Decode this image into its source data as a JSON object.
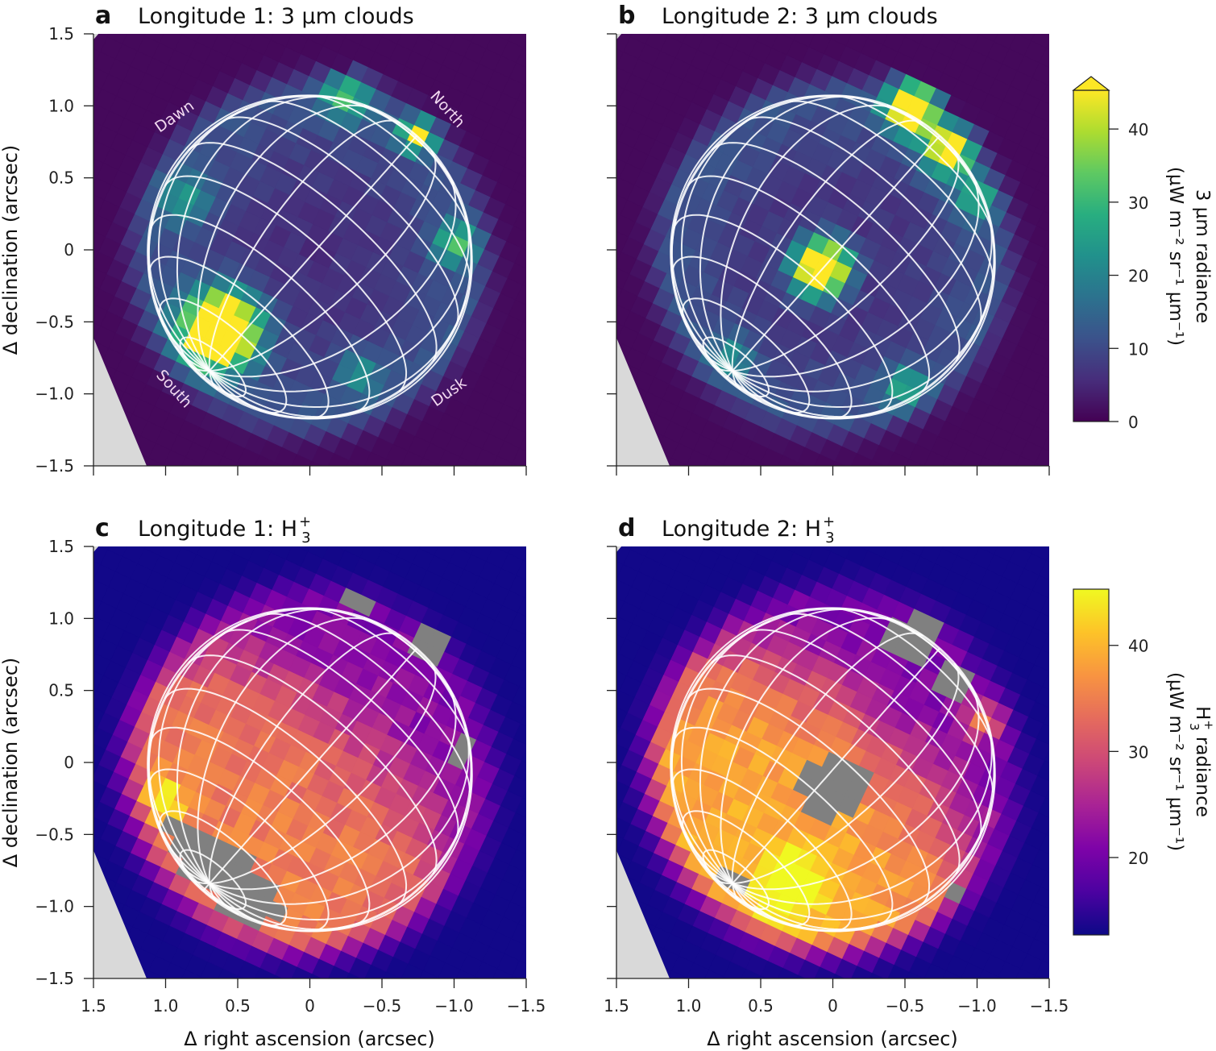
{
  "figure": {
    "y_label": "Δ declination (arcsec)",
    "x_label": "Δ right ascension (arcsec)"
  },
  "chart_data": [
    {
      "panel": "a",
      "type": "heatmap",
      "title": "Longitude 1: 3 µm clouds",
      "colormap": "viridis",
      "xlim": [
        1.5,
        -1.5
      ],
      "ylim": [
        -1.5,
        1.5
      ],
      "x_ticks": [
        "1.5",
        "1.0",
        "0.5",
        "0",
        "−0.5",
        "−1.0",
        "−1.5"
      ],
      "y_ticks": [
        "1.5",
        "1.0",
        "0.5",
        "0",
        "−0.5",
        "−1.0",
        "−1.5"
      ],
      "annotations": [
        "Dawn",
        "North",
        "South",
        "Dusk"
      ],
      "background_value": 1,
      "disk_value": 6,
      "features": [
        {
          "ra": 0.62,
          "dec": -0.55,
          "value": 70,
          "sigma": 0.17
        },
        {
          "ra": -0.75,
          "dec": 0.8,
          "value": 38,
          "sigma": 0.08
        },
        {
          "ra": -0.25,
          "dec": 1.08,
          "value": 22,
          "sigma": 0.12
        },
        {
          "ra": -1.0,
          "dec": 0.05,
          "value": 22,
          "sigma": 0.1
        },
        {
          "ra": 0.85,
          "dec": 0.35,
          "value": 15,
          "sigma": 0.12
        },
        {
          "ra": -0.35,
          "dec": -0.85,
          "value": 14,
          "sigma": 0.1
        }
      ],
      "masked": []
    },
    {
      "panel": "b",
      "type": "heatmap",
      "title": "Longitude 2: 3 µm clouds",
      "colormap": "viridis",
      "xlim": [
        1.5,
        -1.5
      ],
      "ylim": [
        -1.5,
        1.5
      ],
      "x_ticks": [
        "1.5",
        "1.0",
        "0.5",
        "0",
        "−0.5",
        "−1.0",
        "−1.5"
      ],
      "background_value": 1,
      "disk_value": 6,
      "features": [
        {
          "ra": 0.08,
          "dec": -0.12,
          "value": 60,
          "sigma": 0.13
        },
        {
          "ra": -0.55,
          "dec": 1.0,
          "value": 55,
          "sigma": 0.12
        },
        {
          "ra": -0.8,
          "dec": 0.7,
          "value": 40,
          "sigma": 0.12
        },
        {
          "ra": -1.0,
          "dec": 0.35,
          "value": 18,
          "sigma": 0.1
        },
        {
          "ra": -0.5,
          "dec": -0.95,
          "value": 18,
          "sigma": 0.1
        },
        {
          "ra": 0.7,
          "dec": -0.75,
          "value": 14,
          "sigma": 0.1
        }
      ],
      "masked": []
    },
    {
      "panel": "c",
      "type": "heatmap",
      "title": "Longitude 1: H",
      "title_sub": "3",
      "title_sup": "+",
      "colormap": "plasma",
      "xlim": [
        1.5,
        -1.5
      ],
      "ylim": [
        -1.5,
        1.5
      ],
      "x_ticks": [
        "1.5",
        "1.0",
        "0.5",
        "0",
        "−0.5",
        "−1.0",
        "−1.5"
      ],
      "y_ticks": [
        "1.5",
        "1.0",
        "0.5",
        "0",
        "−0.5",
        "−1.0",
        "−1.5"
      ],
      "background_value": 13,
      "north_value": 21,
      "south_value": 35,
      "features": [
        {
          "ra": 1.0,
          "dec": -0.25,
          "value": 12,
          "sigma": 0.1
        },
        {
          "ra": 0.4,
          "dec": -0.98,
          "value": 12,
          "sigma": 0.08
        }
      ],
      "masked": [
        {
          "ra": -0.35,
          "dec": 1.1,
          "radius": 0.1
        },
        {
          "ra": -0.85,
          "dec": 0.8,
          "radius": 0.12
        },
        {
          "ra": -1.05,
          "dec": 0.1,
          "radius": 0.09
        },
        {
          "ra": 0.9,
          "dec": 0.35,
          "radius": 0.06
        }
      ],
      "masked_south_of_latitude": -62
    },
    {
      "panel": "d",
      "type": "heatmap",
      "title": "Longitude 2: H",
      "title_sub": "3",
      "title_sup": "+",
      "colormap": "plasma",
      "xlim": [
        1.5,
        -1.5
      ],
      "ylim": [
        -1.5,
        1.5
      ],
      "x_ticks": [
        "1.5",
        "1.0",
        "0.5",
        "0",
        "−0.5",
        "−1.0",
        "−1.5"
      ],
      "background_value": 13,
      "north_value": 20,
      "south_value": 39,
      "features": [
        {
          "ra": 0.3,
          "dec": -0.85,
          "value": 10,
          "sigma": 0.18
        },
        {
          "ra": -1.05,
          "dec": 0.3,
          "value": 14,
          "sigma": 0.1
        }
      ],
      "masked": [
        {
          "ra": 0.0,
          "dec": -0.15,
          "radius": 0.22
        },
        {
          "ra": -0.55,
          "dec": 0.85,
          "radius": 0.18
        },
        {
          "ra": -0.85,
          "dec": 0.55,
          "radius": 0.14
        },
        {
          "ra": -0.85,
          "dec": -0.95,
          "radius": 0.05
        }
      ],
      "masked_south_of_latitude": -80
    }
  ],
  "colorbars": [
    {
      "label": "3 µm radiance",
      "units": "(µW m⁻² sr⁻¹ µm⁻¹)",
      "colormap": "viridis",
      "range": [
        0,
        45.3
      ],
      "extend": "max",
      "ticks": [
        "0",
        "10",
        "20",
        "30",
        "40"
      ]
    },
    {
      "label_prefix": "H",
      "label_sub": "3",
      "label_sup": "+",
      "label": " radiance",
      "units": "(µW m⁻² sr⁻¹ µm⁻¹)",
      "colormap": "plasma",
      "range": [
        12.7,
        45.3
      ],
      "ticks": [
        "20",
        "30",
        "40"
      ]
    }
  ],
  "colors": {
    "no_data": "#d9d9d9",
    "masked": "#808080",
    "grid_lines": "#ffffff",
    "annotation": "#f2d9f0"
  }
}
